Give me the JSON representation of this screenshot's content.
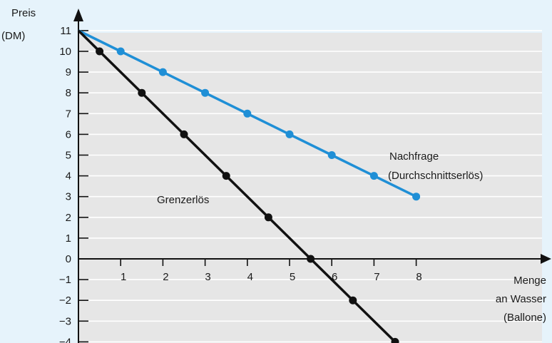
{
  "chart_data": {
    "type": "line",
    "ylabel_line1": "Preis",
    "ylabel_line2": "(DM)",
    "xlabel_line1": "Menge",
    "xlabel_line2": "an Wasser",
    "xlabel_line3": "(Ballone)",
    "xlim": [
      0,
      11
    ],
    "ylim": [
      -4,
      11
    ],
    "x_ticks": [
      1,
      2,
      3,
      4,
      5,
      6,
      7,
      8
    ],
    "y_ticks": [
      11,
      10,
      9,
      8,
      7,
      6,
      5,
      4,
      3,
      2,
      1,
      0,
      -1,
      -2,
      -3,
      -4
    ],
    "y_tick_labels": [
      "11",
      "10",
      "9",
      "8",
      "7",
      "6",
      "5",
      "4",
      "3",
      "2",
      "1",
      "0",
      "−1",
      "−2",
      "−3",
      "−4"
    ],
    "x_tick_labels": [
      "1",
      "2",
      "3",
      "4",
      "5",
      "6",
      "7",
      "8"
    ],
    "series": [
      {
        "name_line1": "Nachfrage",
        "name_line2": "(Durchschnittserlös)",
        "color": "#1f8fd6",
        "x": [
          0,
          1,
          2,
          3,
          4,
          5,
          6,
          7,
          8
        ],
        "y": [
          11,
          10,
          9,
          8,
          7,
          6,
          5,
          4,
          3
        ]
      },
      {
        "name": "Grenzerlös",
        "color": "#111111",
        "line_x": [
          0,
          7.5
        ],
        "line_y": [
          11,
          -4
        ],
        "x": [
          0.5,
          1.5,
          2.5,
          3.5,
          4.5,
          5.5,
          6.5,
          7.5
        ],
        "y": [
          10,
          8,
          6,
          4,
          2,
          0,
          -2,
          -4
        ]
      }
    ],
    "grid": "horizontal",
    "background": "#e6f3fb",
    "plot_background": "#e6e6e6"
  }
}
